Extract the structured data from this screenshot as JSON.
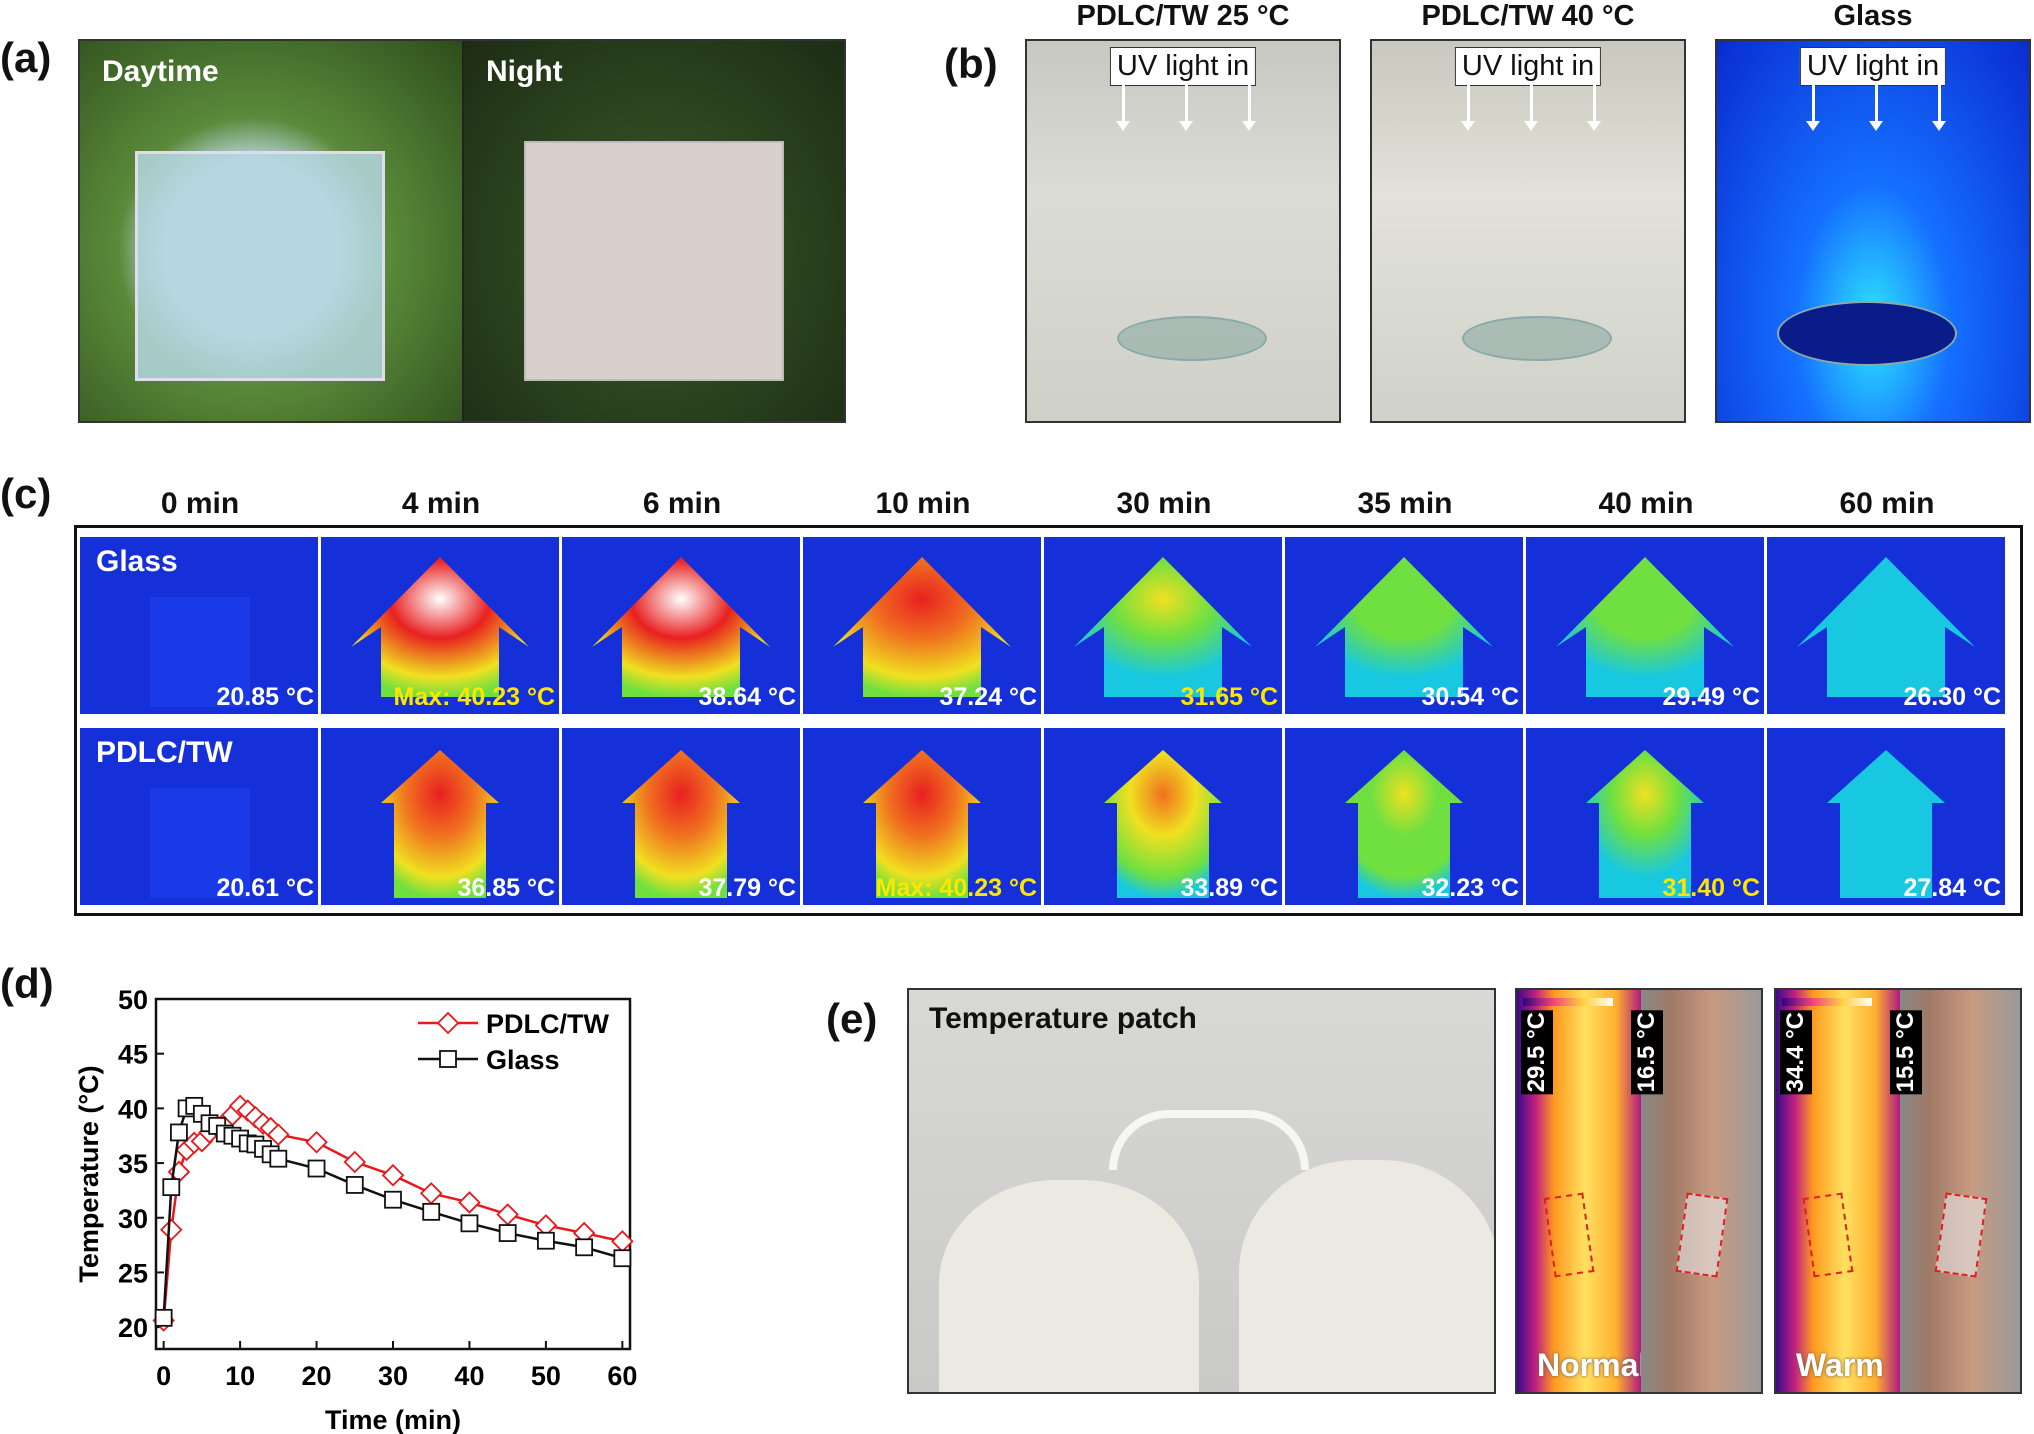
{
  "panel_a": {
    "label": "(a)",
    "photos": [
      {
        "caption": "Daytime"
      },
      {
        "caption": "Night"
      }
    ]
  },
  "panel_b": {
    "label": "(b)",
    "uv_label": "UV light in",
    "photos": [
      {
        "title": "PDLC/TW 25 °C"
      },
      {
        "title": "PDLC/TW 40 °C"
      },
      {
        "title": "Glass"
      }
    ]
  },
  "panel_c": {
    "label": "(c)",
    "columns": [
      "0 min",
      "4 min",
      "6 min",
      "10 min",
      "30 min",
      "35 min",
      "40 min",
      "60 min"
    ],
    "rows": [
      {
        "name": "Glass",
        "temps": [
          "20.85 °C",
          "Max: 40.23 °C",
          "38.64 °C",
          "37.24 °C",
          "31.65 °C",
          "30.54 °C",
          "29.49 °C",
          "26.30 °C"
        ],
        "highlight": [
          1,
          4
        ]
      },
      {
        "name": "PDLC/TW",
        "temps": [
          "20.61 °C",
          "36.85 °C",
          "37.79 °C",
          "Max: 40.23 °C",
          "33.89 °C",
          "32.23 °C",
          "31.40 °C",
          "27.84 °C"
        ],
        "highlight": [
          3,
          6
        ]
      }
    ]
  },
  "panel_d": {
    "label": "(d)"
  },
  "panel_e": {
    "label": "(e)",
    "photo_caption": "Temperature patch",
    "thermal": [
      {
        "caption": "Normal",
        "max": "29.5 °C",
        "min": "16.5 °C"
      },
      {
        "caption": "Warm",
        "max": "34.4 °C",
        "min": "15.5 °C"
      }
    ]
  },
  "chart_data": {
    "type": "line",
    "title": "",
    "xlabel": "Time (min)",
    "ylabel": "Temperature (°C)",
    "xlim": [
      -1,
      61
    ],
    "ylim": [
      18,
      50
    ],
    "xticks": [
      0,
      10,
      20,
      30,
      40,
      50,
      60
    ],
    "yticks": [
      20,
      25,
      30,
      35,
      40,
      45,
      50
    ],
    "legend": "top-right",
    "grid": false,
    "series": [
      {
        "name": "PDLC/TW",
        "color": "#e8191b",
        "marker": "diamond",
        "x": [
          0,
          1,
          2,
          3,
          4,
          5,
          6,
          7,
          8,
          9,
          10,
          11,
          12,
          13,
          14,
          15,
          20,
          25,
          30,
          35,
          40,
          45,
          50,
          55,
          60
        ],
        "y": [
          20.61,
          28.9,
          34.2,
          36.2,
          36.85,
          37.0,
          37.79,
          38.3,
          38.7,
          39.4,
          40.23,
          39.8,
          39.2,
          38.6,
          38.2,
          37.6,
          36.9,
          35.1,
          33.89,
          32.23,
          31.4,
          30.3,
          29.3,
          28.6,
          27.84
        ]
      },
      {
        "name": "Glass",
        "color": "#111111",
        "marker": "square",
        "x": [
          0,
          1,
          2,
          3,
          4,
          5,
          6,
          7,
          8,
          9,
          10,
          11,
          12,
          13,
          14,
          15,
          20,
          25,
          30,
          35,
          40,
          45,
          50,
          55,
          60
        ],
        "y": [
          20.85,
          32.8,
          37.8,
          40.0,
          40.23,
          39.5,
          38.64,
          38.4,
          37.7,
          37.5,
          37.24,
          36.8,
          36.7,
          36.3,
          35.8,
          35.4,
          34.5,
          33.0,
          31.65,
          30.54,
          29.49,
          28.6,
          27.9,
          27.3,
          26.3
        ]
      }
    ]
  }
}
